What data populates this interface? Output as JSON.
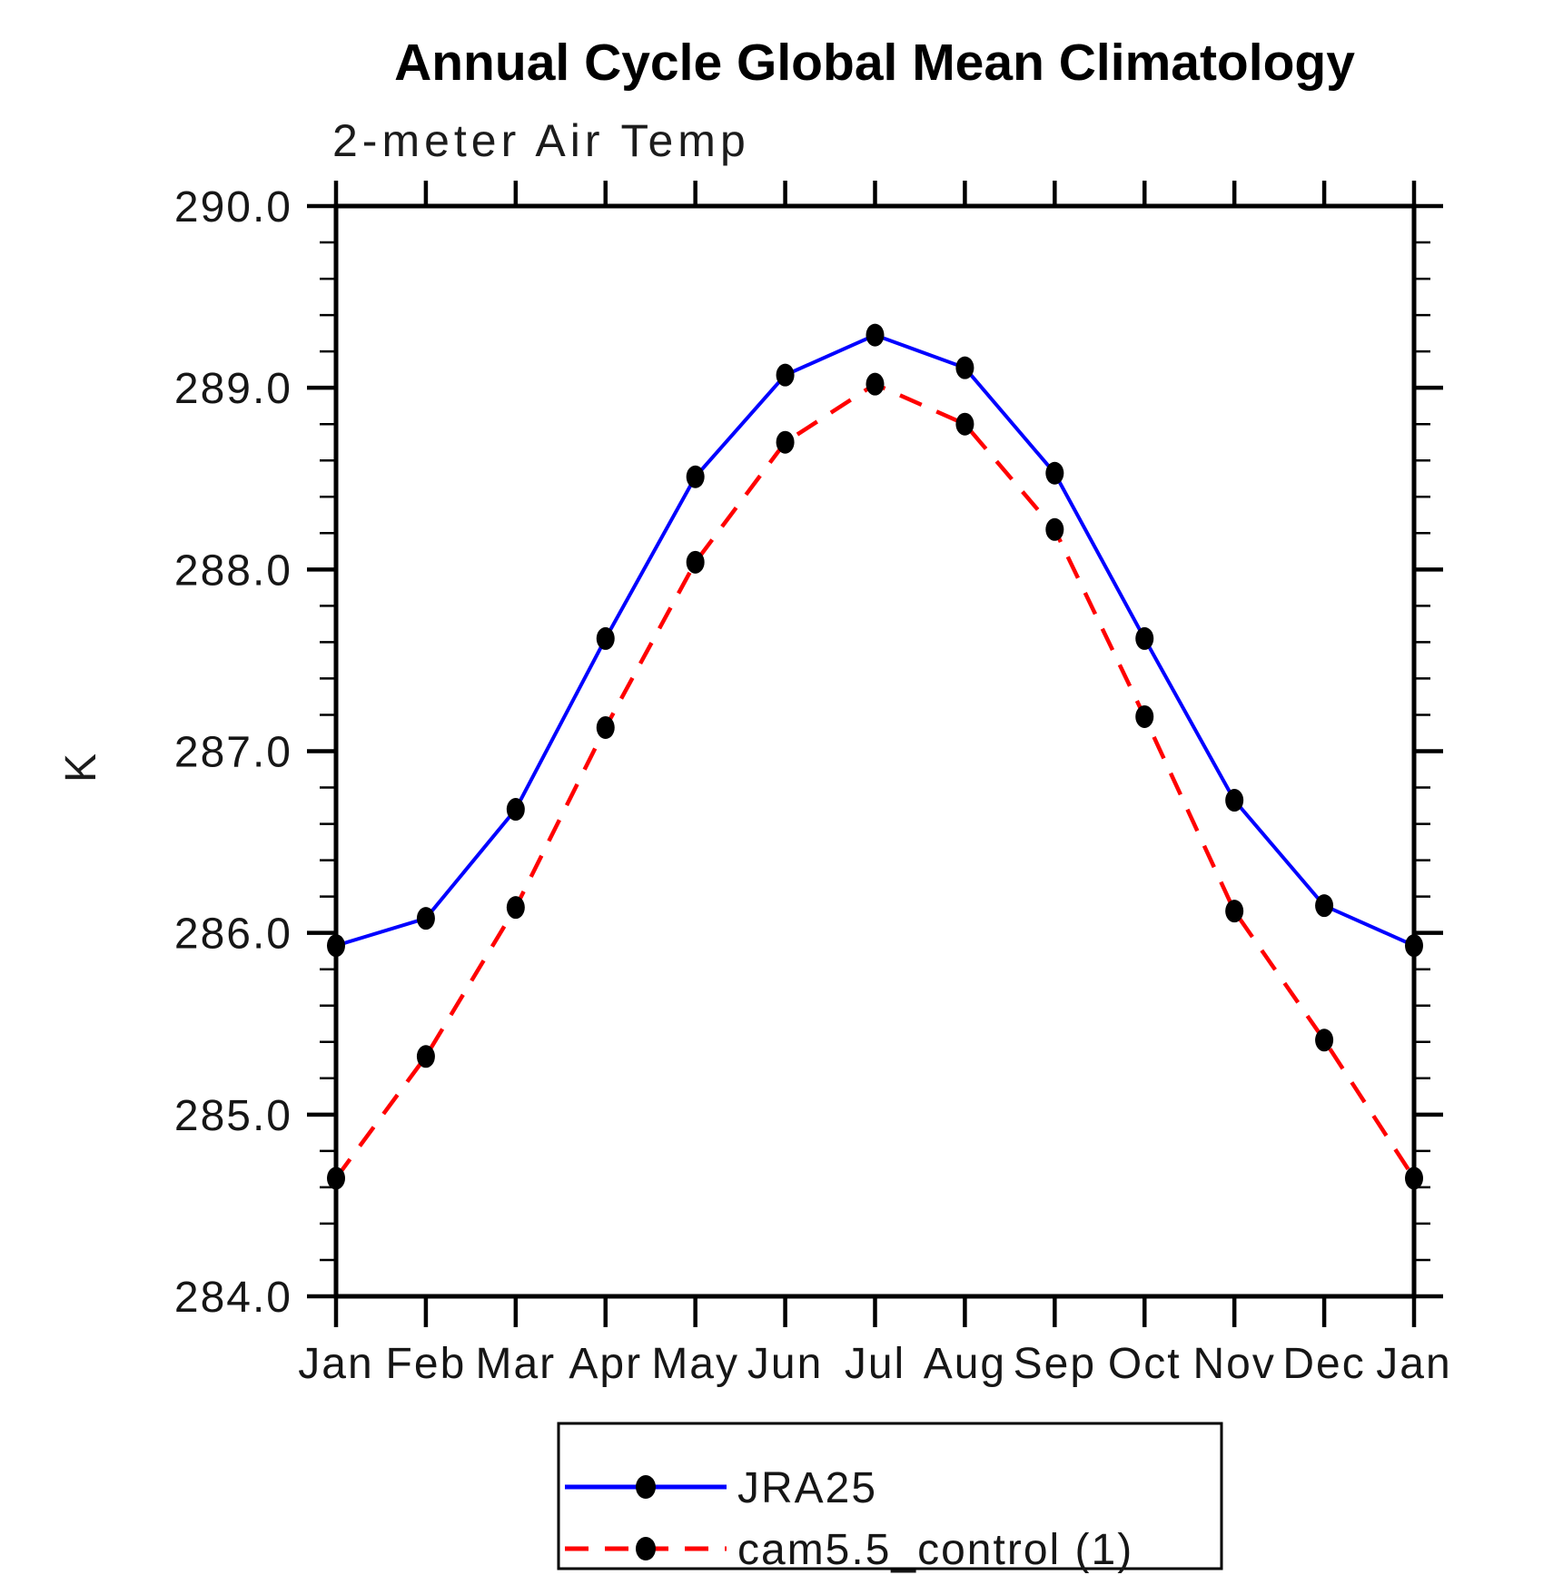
{
  "header": {
    "title": "Annual Cycle Global Mean Climatology",
    "subtitle": "2-meter Air Temp"
  },
  "chart_data": {
    "type": "line",
    "title": "Annual Cycle Global Mean Climatology",
    "subtitle": "2-meter Air Temp",
    "xlabel": "",
    "ylabel": "K",
    "ylim": [
      284.0,
      290.0
    ],
    "ytick_interval": 1.0,
    "yminor_interval": 0.2,
    "ytick_label_format": "one_decimal",
    "grid": "off",
    "categories": [
      "Jan",
      "Feb",
      "Mar",
      "Apr",
      "May",
      "Jun",
      "Jul",
      "Aug",
      "Sep",
      "Oct",
      "Nov",
      "Dec",
      "Jan"
    ],
    "series": [
      {
        "name": "JRA25",
        "line_style": "solid",
        "color": "#0000ff",
        "marker": "filled-circle",
        "marker_color": "#000000",
        "values": [
          285.93,
          286.08,
          286.68,
          287.62,
          288.51,
          289.07,
          289.29,
          289.11,
          288.53,
          287.62,
          286.73,
          286.15,
          285.93
        ]
      },
      {
        "name": "cam5.5_control (1)",
        "line_style": "dashed",
        "color": "#ff0000",
        "marker": "filled-circle",
        "marker_color": "#000000",
        "values": [
          284.65,
          285.32,
          286.14,
          287.13,
          288.04,
          288.7,
          289.02,
          288.8,
          288.22,
          287.19,
          286.12,
          285.41,
          284.65
        ]
      }
    ],
    "legend_position": "bottom-center"
  },
  "legend": {
    "items": [
      {
        "label": "JRA25",
        "line": "solid-blue",
        "marker": "black-dot"
      },
      {
        "label": "cam5.5_control (1)",
        "line": "dashed-red",
        "marker": "black-dot"
      }
    ]
  },
  "colors": {
    "series1": "#0000ff",
    "series2": "#ff0000",
    "marker": "#000000",
    "axis": "#000000",
    "background": "#ffffff"
  }
}
